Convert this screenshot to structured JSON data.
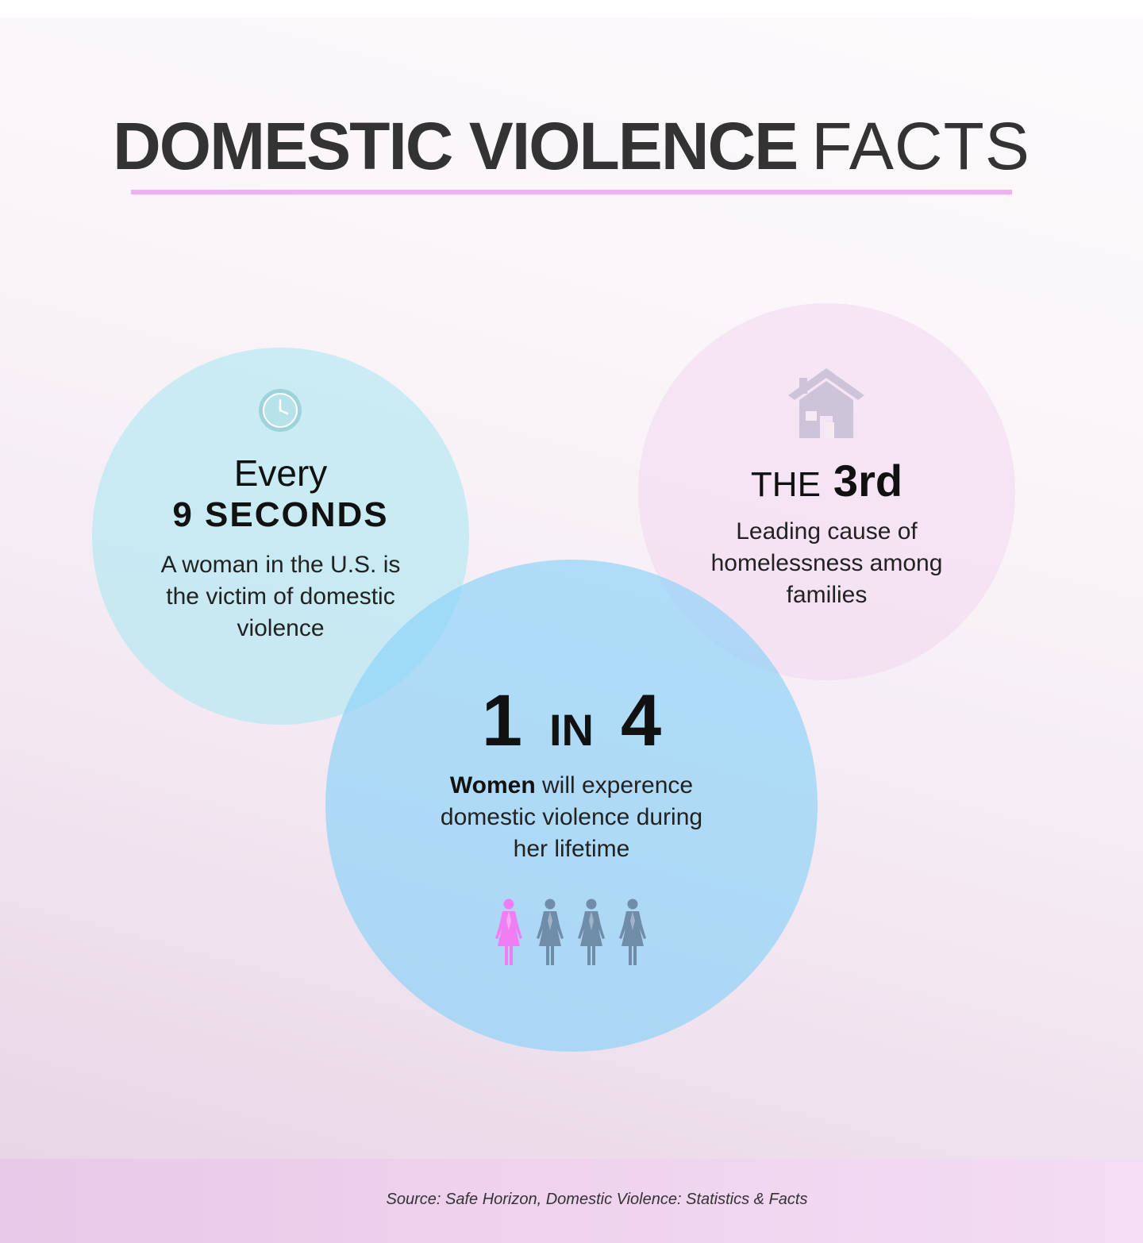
{
  "title": {
    "strong": "DOMESTIC VIOLENCE",
    "light": "FACTS"
  },
  "facts": {
    "clock": {
      "icon": "clock-icon",
      "line1": "Every",
      "line2": "9 SECONDS",
      "desc_lines": [
        "A woman in the U.S. is",
        "the victim of domestic",
        "violence"
      ]
    },
    "home": {
      "icon": "house-icon",
      "prefix": "THE",
      "stat": "3rd",
      "desc_lines": [
        "Leading cause of",
        "homelessness among",
        "families"
      ]
    },
    "women": {
      "num1": "1",
      "in": "IN",
      "num2": "4",
      "desc_bold": "Women",
      "desc_rest_line1": " will experence",
      "desc_lines": [
        "domestic violence during",
        "her lifetime"
      ],
      "figures": {
        "icon": "woman-figure-icon",
        "total": 4,
        "highlighted": 1,
        "highlight_color": "#f07ef2",
        "base_color": "#6f8ca9"
      }
    }
  },
  "colors": {
    "underline": "#f1b0f3",
    "clock_circle": "#aae8f2",
    "home_circle": "#f3d7f0",
    "women_circle": "#8cd3f8",
    "title_text": "#333333"
  },
  "footer": {
    "source": "Source: Safe Horizon, Domestic Violence: Statistics & Facts"
  }
}
